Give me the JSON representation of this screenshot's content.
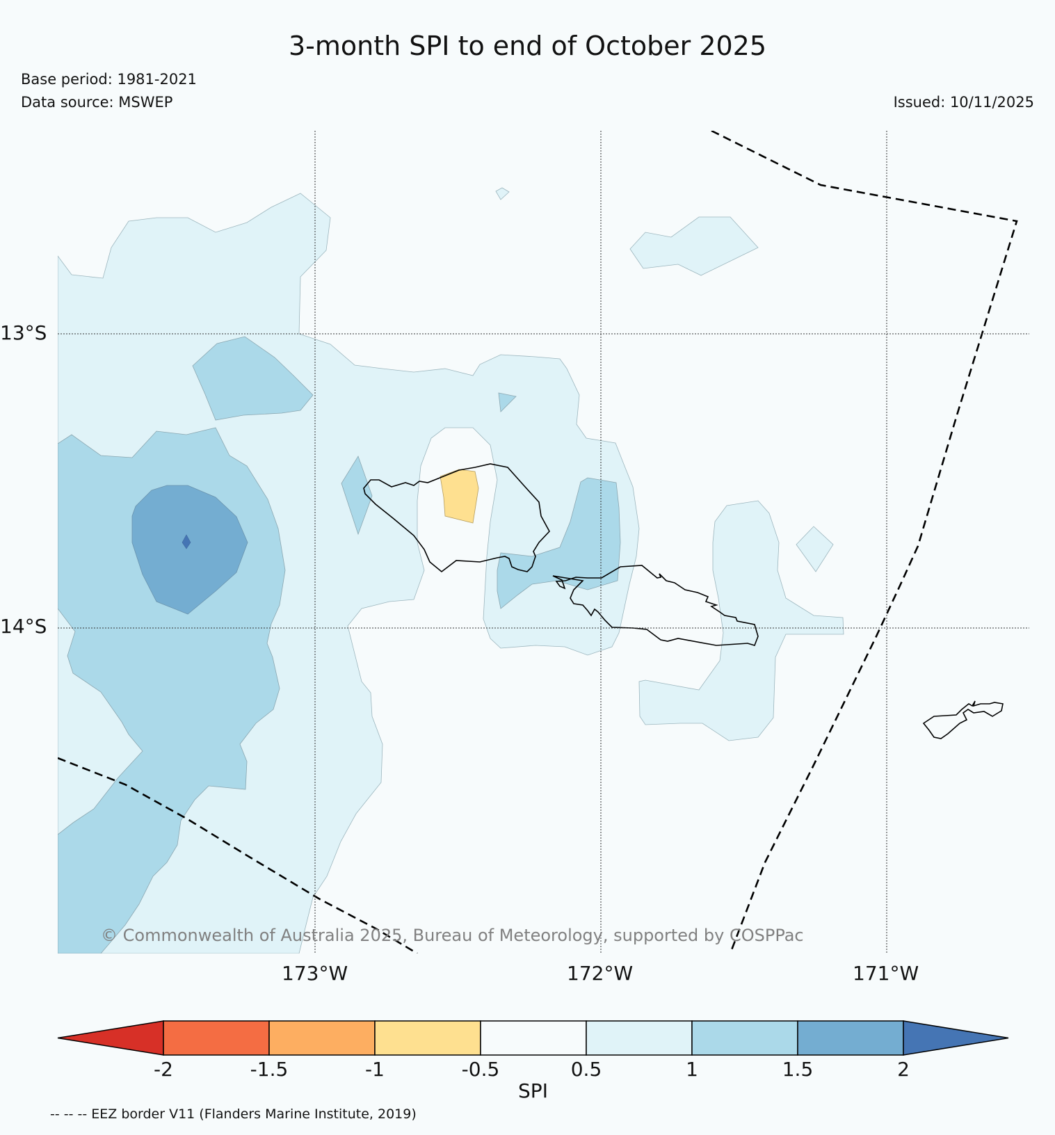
{
  "title": "3-month SPI to end of October 2025",
  "base_period": "Base period: 1981-2021",
  "data_source": "Data source: MSWEP",
  "issued": "Issued: 10/11/2025",
  "lat_labels": [
    "13°S",
    "14°S"
  ],
  "lon_labels": [
    "173°W",
    "172°W",
    "171°W"
  ],
  "credit": "© Commonwealth of Australia 2025, Bureau of Meteorology, supported by COSPPac",
  "colorbar": {
    "label": "SPI",
    "ticks": [
      "-2",
      "-1.5",
      "-1",
      "-0.5",
      "0.5",
      "1",
      "1.5",
      "2"
    ],
    "colors": [
      "#d73027",
      "#f46d43",
      "#fdae61",
      "#fee090",
      "#f7fbfc",
      "#e0f3f8",
      "#abd9e9",
      "#74add1",
      "#4575b4"
    ]
  },
  "eez_note": "-- -- -- EEZ border V11 (Flanders Marine Institute, 2019)",
  "colors": {
    "spi_0_5_to_1": "#e0f3f8",
    "spi_1_to_1_5": "#abd9e9",
    "spi_1_5_to_2": "#74add1",
    "spi_above_2": "#4575b4",
    "spi_minus_1_to_minus_0_5": "#fee090",
    "background": "#f7fbfc"
  }
}
